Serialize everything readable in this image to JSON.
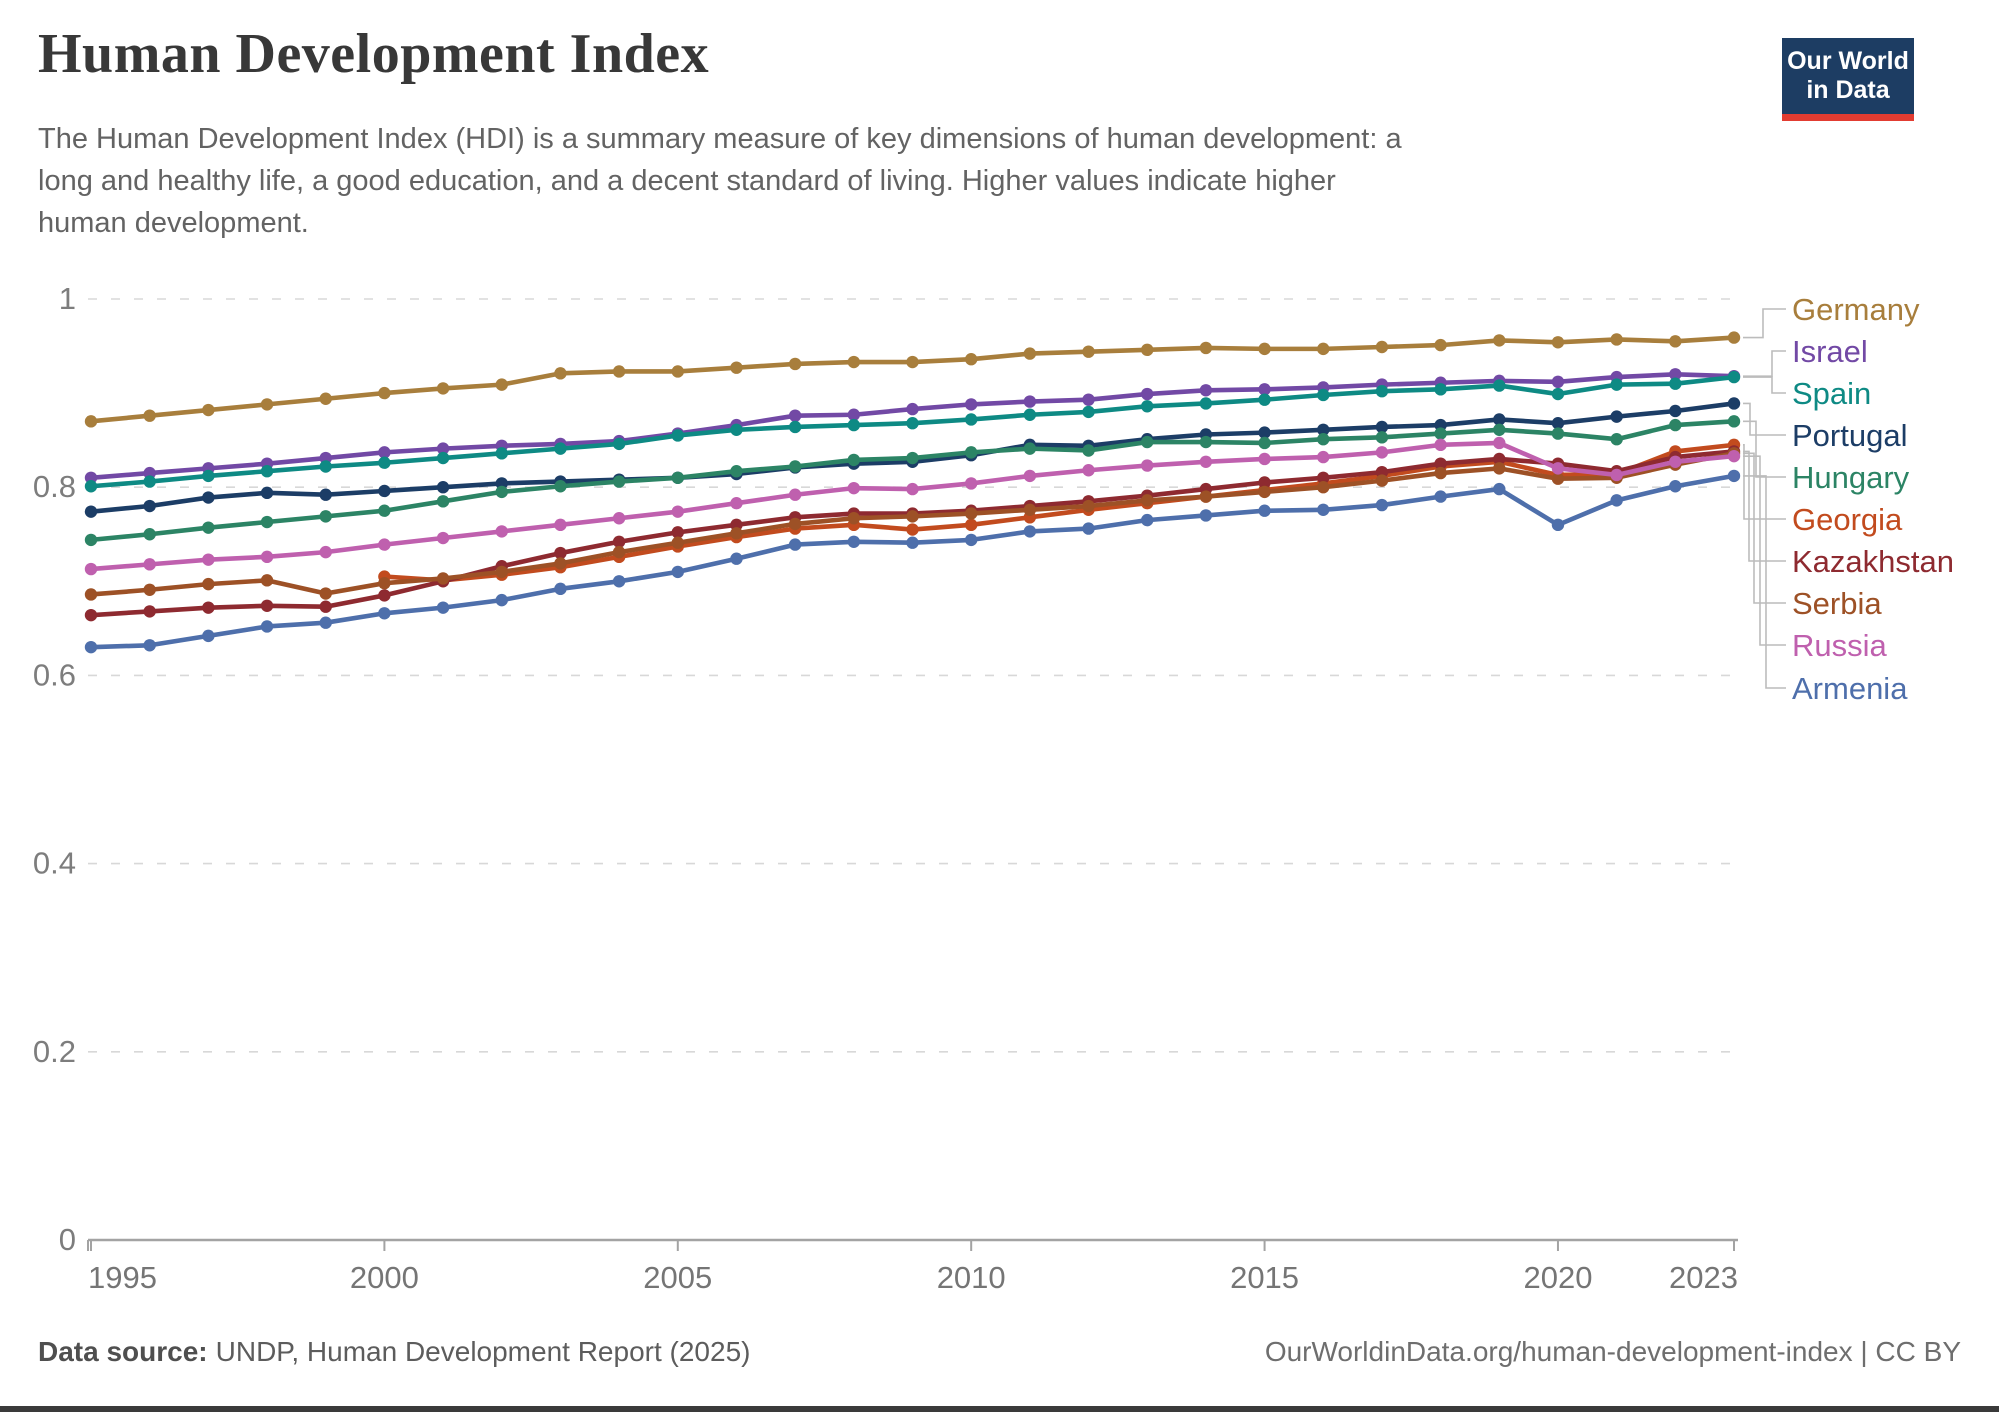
{
  "header": {
    "title": "Human Development Index",
    "subtitle": "The Human Development Index (HDI) is a summary measure of key dimensions of human development: a long and healthy life, a good education, and a decent standard of living. Higher values indicate higher human development.",
    "logo": {
      "line1": "Our World",
      "line2": "in Data"
    }
  },
  "chart_data": {
    "type": "line",
    "title": "Human Development Index",
    "xlabel": "",
    "ylabel": "",
    "ylim": [
      0,
      1
    ],
    "yticks": [
      0,
      0.2,
      0.4,
      0.6,
      0.8,
      1
    ],
    "xticks": [
      1995,
      2000,
      2005,
      2010,
      2015,
      2020,
      2023
    ],
    "grid": "horizontal-dashed",
    "legend_position": "right",
    "x": [
      1995,
      1996,
      1997,
      1998,
      1999,
      2000,
      2001,
      2002,
      2003,
      2004,
      2005,
      2006,
      2007,
      2008,
      2009,
      2010,
      2011,
      2012,
      2013,
      2014,
      2015,
      2016,
      2017,
      2018,
      2019,
      2020,
      2021,
      2022,
      2023
    ],
    "series": [
      {
        "name": "Germany",
        "color": "#A87E3C",
        "values": [
          0.87,
          0.876,
          0.882,
          0.888,
          0.894,
          0.9,
          0.905,
          0.909,
          0.921,
          0.923,
          0.923,
          0.927,
          0.931,
          0.933,
          0.933,
          0.936,
          0.942,
          0.944,
          0.946,
          0.948,
          0.947,
          0.947,
          0.949,
          0.951,
          0.956,
          0.954,
          0.957,
          0.955,
          0.959
        ]
      },
      {
        "name": "Israel",
        "color": "#7249A5",
        "values": [
          0.81,
          0.815,
          0.82,
          0.825,
          0.831,
          0.837,
          0.841,
          0.844,
          0.846,
          0.849,
          0.857,
          0.866,
          0.876,
          0.877,
          0.883,
          0.888,
          0.891,
          0.893,
          0.899,
          0.903,
          0.904,
          0.906,
          0.909,
          0.911,
          0.913,
          0.912,
          0.917,
          0.92,
          0.918
        ]
      },
      {
        "name": "Spain",
        "color": "#0E8A84",
        "values": [
          0.801,
          0.806,
          0.812,
          0.817,
          0.822,
          0.826,
          0.831,
          0.836,
          0.841,
          0.846,
          0.855,
          0.861,
          0.864,
          0.866,
          0.868,
          0.872,
          0.877,
          0.88,
          0.886,
          0.889,
          0.893,
          0.898,
          0.902,
          0.904,
          0.908,
          0.899,
          0.909,
          0.91,
          0.917
        ]
      },
      {
        "name": "Portugal",
        "color": "#1C3D66",
        "values": [
          0.774,
          0.78,
          0.789,
          0.794,
          0.792,
          0.796,
          0.8,
          0.804,
          0.806,
          0.808,
          0.81,
          0.814,
          0.821,
          0.825,
          0.827,
          0.834,
          0.845,
          0.844,
          0.851,
          0.856,
          0.858,
          0.861,
          0.864,
          0.866,
          0.872,
          0.868,
          0.875,
          0.881,
          0.889
        ]
      },
      {
        "name": "Hungary",
        "color": "#2C8465",
        "values": [
          0.744,
          0.75,
          0.757,
          0.763,
          0.769,
          0.775,
          0.785,
          0.795,
          0.801,
          0.806,
          0.81,
          0.817,
          0.822,
          0.829,
          0.831,
          0.837,
          0.841,
          0.839,
          0.848,
          0.848,
          0.847,
          0.851,
          0.853,
          0.857,
          0.861,
          0.857,
          0.851,
          0.866,
          0.87
        ]
      },
      {
        "name": "Georgia",
        "color": "#C24B1E",
        "values": [
          null,
          null,
          null,
          null,
          null,
          0.705,
          0.701,
          0.707,
          0.715,
          0.726,
          0.737,
          0.747,
          0.756,
          0.76,
          0.755,
          0.76,
          0.768,
          0.776,
          0.783,
          0.79,
          0.797,
          0.804,
          0.812,
          0.822,
          0.827,
          0.813,
          0.814,
          0.838,
          0.845
        ]
      },
      {
        "name": "Kazakhstan",
        "color": "#8E2A30",
        "values": [
          0.664,
          0.668,
          0.672,
          0.674,
          0.673,
          0.685,
          0.7,
          0.716,
          0.73,
          0.742,
          0.752,
          0.76,
          0.768,
          0.772,
          0.772,
          0.775,
          0.78,
          0.785,
          0.791,
          0.798,
          0.805,
          0.81,
          0.816,
          0.825,
          0.83,
          0.825,
          0.817,
          0.832,
          0.838
        ]
      },
      {
        "name": "Serbia",
        "color": "#9D5126",
        "values": [
          0.686,
          0.691,
          0.697,
          0.701,
          0.687,
          0.698,
          0.703,
          0.71,
          0.719,
          0.731,
          0.741,
          0.751,
          0.761,
          0.767,
          0.769,
          0.772,
          0.776,
          0.78,
          0.786,
          0.79,
          0.795,
          0.8,
          0.807,
          0.815,
          0.82,
          0.809,
          0.81,
          0.824,
          0.836
        ]
      },
      {
        "name": "Russia",
        "color": "#BF60AE",
        "values": [
          0.713,
          0.718,
          0.723,
          0.726,
          0.731,
          0.739,
          0.746,
          0.753,
          0.76,
          0.767,
          0.774,
          0.783,
          0.792,
          0.799,
          0.798,
          0.804,
          0.812,
          0.818,
          0.823,
          0.827,
          0.83,
          0.832,
          0.837,
          0.845,
          0.847,
          0.82,
          0.813,
          0.827,
          0.833
        ]
      },
      {
        "name": "Armenia",
        "color": "#4E6FAB",
        "values": [
          0.63,
          0.632,
          0.642,
          0.652,
          0.656,
          0.666,
          0.672,
          0.68,
          0.692,
          0.7,
          0.71,
          0.724,
          0.739,
          0.742,
          0.741,
          0.744,
          0.753,
          0.756,
          0.765,
          0.77,
          0.775,
          0.776,
          0.781,
          0.79,
          0.798,
          0.76,
          0.786,
          0.801,
          0.812
        ]
      }
    ]
  },
  "footer": {
    "source_label": "Data source:",
    "source_value": "UNDP, Human Development Report (2025)",
    "link_and_license": "OurWorldinData.org/human-development-index | CC BY"
  }
}
